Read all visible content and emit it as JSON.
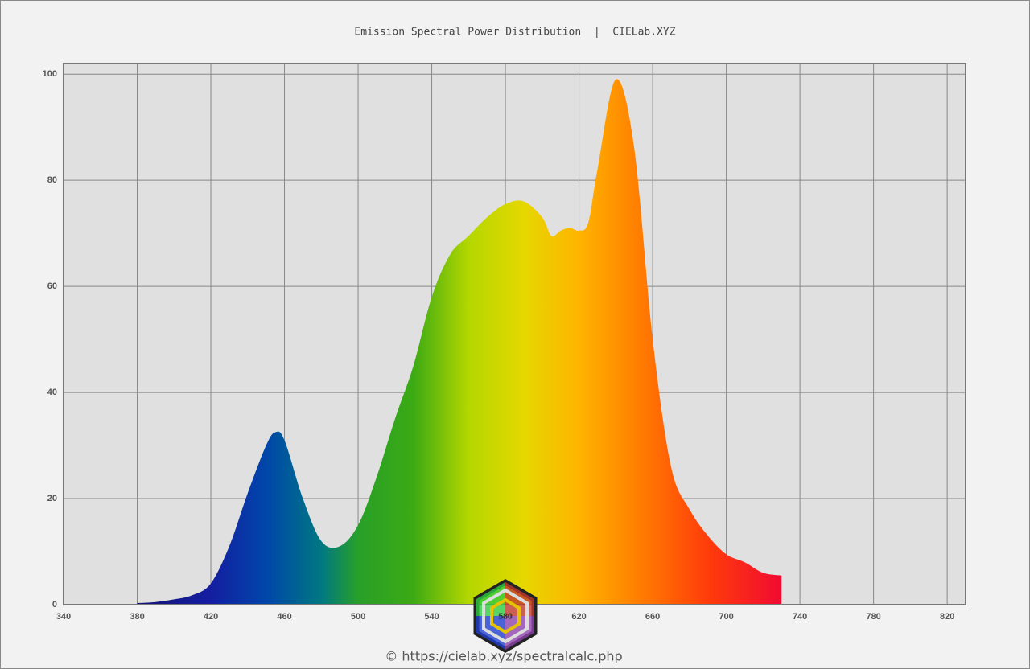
{
  "chart_data": {
    "type": "area",
    "title": "Emission Spectral Power Distribution  |  CIELab.XYZ",
    "footer": "© https://cielab.xyz/spectralcalc.php",
    "logo_text": "580",
    "x": [
      380,
      390,
      400,
      410,
      420,
      430,
      440,
      450,
      455,
      460,
      470,
      480,
      490,
      500,
      510,
      520,
      530,
      540,
      550,
      560,
      570,
      580,
      590,
      600,
      605,
      610,
      615,
      620,
      625,
      630,
      640,
      650,
      660,
      670,
      680,
      690,
      700,
      710,
      720,
      730
    ],
    "values": [
      0.3,
      0.5,
      1,
      1.8,
      4,
      11,
      21,
      30,
      32.5,
      31,
      20,
      12,
      11,
      15,
      24,
      35,
      45,
      58,
      66,
      69.5,
      73,
      75.5,
      76,
      73,
      69.5,
      70.5,
      71,
      70.5,
      72,
      82,
      99,
      86,
      50,
      26,
      18,
      13,
      9.5,
      8,
      6,
      5.5
    ],
    "xlim": [
      340,
      830
    ],
    "ylim": [
      0,
      102
    ],
    "xticks": [
      340,
      380,
      420,
      460,
      500,
      540,
      580,
      620,
      660,
      700,
      740,
      780,
      820
    ],
    "yticks": [
      0,
      20,
      40,
      60,
      80,
      100
    ],
    "grid": true
  }
}
